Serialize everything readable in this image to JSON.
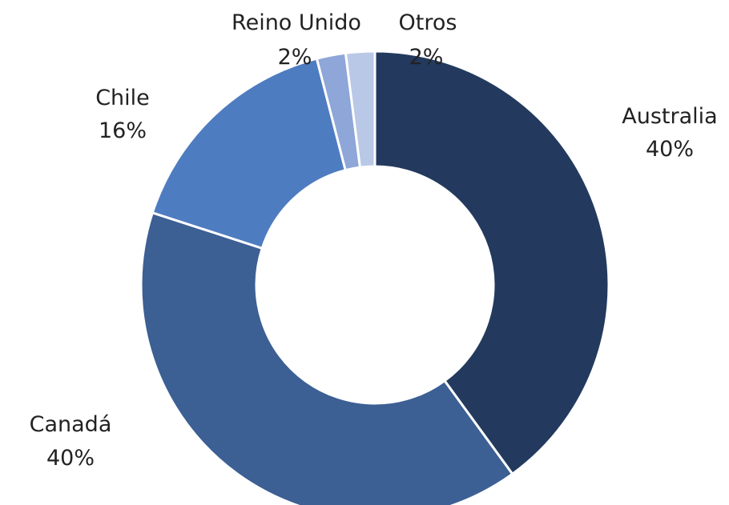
{
  "chart_data": {
    "type": "pie",
    "donut": true,
    "title": "",
    "legend": "none",
    "slices": [
      {
        "label": "Australia",
        "value": 40,
        "value_label": "40%",
        "color": "#233a5e"
      },
      {
        "label": "Canadá",
        "value": 40,
        "value_label": "40%",
        "color": "#3c5f94"
      },
      {
        "label": "Chile",
        "value": 16,
        "value_label": "16%",
        "color": "#4e7cc0"
      },
      {
        "label": "Reino Unido",
        "value": 2,
        "value_label": "2%",
        "color": "#8ea6d8"
      },
      {
        "label": "Otros",
        "value": 2,
        "value_label": "2%",
        "color": "#b9c8e6"
      }
    ]
  }
}
